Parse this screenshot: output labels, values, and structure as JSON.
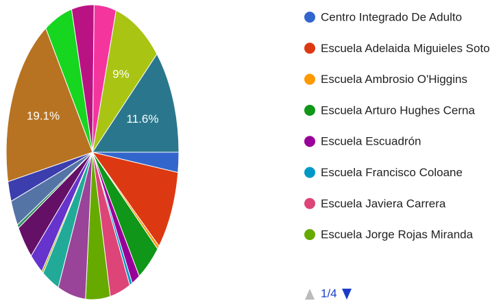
{
  "chart_data": {
    "type": "pie",
    "categories": [
      "Centro Integrado De Adulto",
      "Escuela Adelaida Miguieles Soto",
      "Escuela Ambrosio O'Higgins",
      "Escuela Arturo Hughes Cerna",
      "Escuela Escuadrón",
      "Escuela Francisco Coloane",
      "Escuela Javiera Carrera",
      "Escuela Jorge Rojas Miranda",
      null,
      null,
      null,
      null,
      null,
      null,
      null,
      null,
      null,
      null,
      null,
      null,
      null,
      null
    ],
    "values": [
      2.2,
      8.8,
      0.4,
      4.5,
      1.5,
      0.5,
      3.8,
      4.6,
      5.2,
      3.2,
      0.3,
      2.6,
      3.8,
      0.4,
      2.8,
      2.2,
      19.1,
      5.2,
      4.2,
      4.1,
      9,
      11.6
    ],
    "value_labels": [
      null,
      null,
      null,
      null,
      null,
      null,
      null,
      null,
      null,
      null,
      null,
      null,
      null,
      null,
      null,
      null,
      "19.1%",
      null,
      null,
      null,
      "9%",
      "11.6%"
    ],
    "colors": [
      "#3366cc",
      "#dc3912",
      "#ff9900",
      "#109618",
      "#990099",
      "#0099c6",
      "#dd4477",
      "#66aa00",
      "#994499",
      "#22aa99",
      "#aaaa11",
      "#6633cc",
      "#651067",
      "#329262",
      "#5574a6",
      "#3b3eac",
      "#b77322",
      "#16d620",
      "#b91383",
      "#f4359e",
      "#a9c413",
      "#2a778d"
    ],
    "legend_page": "1/4"
  }
}
